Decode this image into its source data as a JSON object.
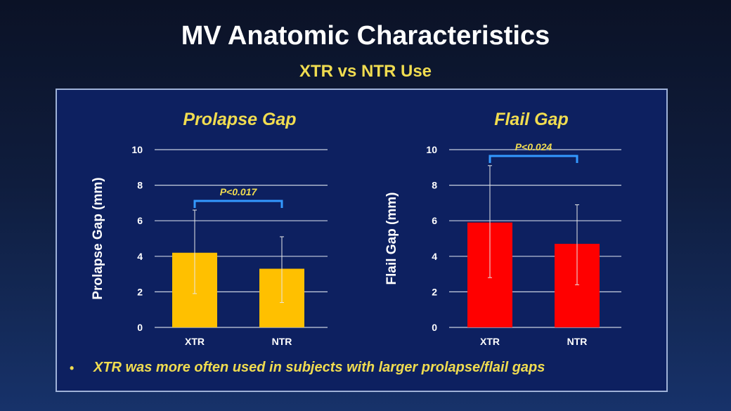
{
  "slide": {
    "title": "MV Anatomic Characteristics",
    "subtitle": "XTR vs NTR Use",
    "bullet": "XTR was more often used in subjects with larger prolapse/flail gaps"
  },
  "chart_data": [
    {
      "type": "bar",
      "title": "Prolapse Gap",
      "ylabel": "Prolapse Gap (mm)",
      "ylim": [
        0,
        10
      ],
      "yticks": [
        0,
        2,
        4,
        6,
        8,
        10
      ],
      "grid": true,
      "categories": [
        "XTR",
        "NTR"
      ],
      "values": [
        4.2,
        3.3
      ],
      "error_upper": [
        6.6,
        5.1
      ],
      "error_lower": [
        1.9,
        1.4
      ],
      "color": "#ffc000",
      "annotation": "P<0.017"
    },
    {
      "type": "bar",
      "title": "Flail Gap",
      "ylabel": "Flail Gap (mm)",
      "ylim": [
        0,
        10
      ],
      "yticks": [
        0,
        2,
        4,
        6,
        8,
        10
      ],
      "grid": true,
      "categories": [
        "XTR",
        "NTR"
      ],
      "values": [
        5.9,
        4.7
      ],
      "error_upper": [
        9.1,
        6.9
      ],
      "error_lower": [
        2.8,
        2.4
      ],
      "color": "#ff0000",
      "annotation": "P<0.024"
    }
  ],
  "colors": {
    "title": "#ffffff",
    "accent_yellow": "#f0dc50",
    "panel": "#0d2060",
    "bracket": "#3399ff",
    "grid": "#c8d0e0"
  }
}
